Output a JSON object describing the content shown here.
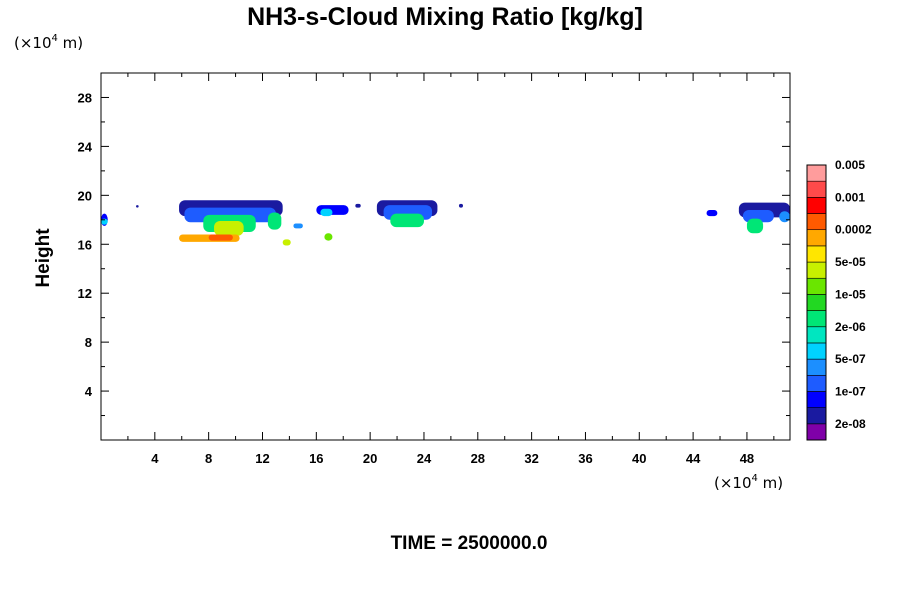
{
  "chart_data": {
    "type": "heatmap",
    "title": "NH3-s-Cloud Mixing Ratio [kg/kg]",
    "ylabel": "Height",
    "xlabel": "",
    "x_unit": {
      "prefix": "(×10",
      "exp": "4",
      "suffix": " m)"
    },
    "y_unit": {
      "prefix": "(×10",
      "exp": "4",
      "suffix": " m)"
    },
    "xlim": [
      0,
      51.2
    ],
    "ylim": [
      0,
      30
    ],
    "x_ticks": [
      4,
      8,
      12,
      16,
      20,
      24,
      28,
      32,
      36,
      40,
      44,
      48
    ],
    "y_ticks": [
      4,
      8,
      12,
      16,
      20,
      24,
      28
    ],
    "footer": "TIME = 2500000.0",
    "colorbar": {
      "colors": [
        "#7f00a8",
        "#1a1aa0",
        "#0000ff",
        "#1e5cff",
        "#1c8fff",
        "#00d2ff",
        "#00e6c0",
        "#00e676",
        "#22d822",
        "#6ae600",
        "#c8f000",
        "#ffe600",
        "#ffa800",
        "#ff5a00",
        "#ff0000",
        "#ff4a4a",
        "#ff9c9c"
      ],
      "labels": [
        "2e-08",
        "1e-07",
        "5e-07",
        "2e-06",
        "1e-05",
        "5e-05",
        "0.0002",
        "0.001",
        "0.005"
      ]
    },
    "cloud_layers": [
      {
        "x": [
          5.8,
          13.5
        ],
        "y": [
          18.3,
          19.6
        ],
        "level": 1
      },
      {
        "x": [
          6.2,
          13.0
        ],
        "y": [
          17.8,
          19.0
        ],
        "level": 3
      },
      {
        "x": [
          7.6,
          11.5
        ],
        "y": [
          17.0,
          18.4
        ],
        "level": 7
      },
      {
        "x": [
          8.4,
          10.6
        ],
        "y": [
          16.7,
          17.9
        ],
        "level": 10
      },
      {
        "x": [
          5.8,
          10.3
        ],
        "y": [
          16.2,
          16.8
        ],
        "level": 12
      },
      {
        "x": [
          8.0,
          9.8
        ],
        "y": [
          16.3,
          16.8
        ],
        "level": 13
      },
      {
        "x": [
          12.4,
          13.4
        ],
        "y": [
          17.2,
          18.6
        ],
        "level": 7
      },
      {
        "x": [
          13.5,
          14.1
        ],
        "y": [
          15.9,
          16.4
        ],
        "level": 10
      },
      {
        "x": [
          14.3,
          15.0
        ],
        "y": [
          17.3,
          17.7
        ],
        "level": 4
      },
      {
        "x": [
          16.0,
          18.4
        ],
        "y": [
          18.4,
          19.2
        ],
        "level": 2
      },
      {
        "x": [
          16.3,
          17.2
        ],
        "y": [
          18.3,
          18.9
        ],
        "level": 5
      },
      {
        "x": [
          16.6,
          17.2
        ],
        "y": [
          16.3,
          16.9
        ],
        "level": 9
      },
      {
        "x": [
          18.9,
          19.3
        ],
        "y": [
          19.0,
          19.3
        ],
        "level": 1
      },
      {
        "x": [
          20.5,
          25.0
        ],
        "y": [
          18.3,
          19.6
        ],
        "level": 1
      },
      {
        "x": [
          21.0,
          24.6
        ],
        "y": [
          18.0,
          19.2
        ],
        "level": 3
      },
      {
        "x": [
          21.5,
          24.0
        ],
        "y": [
          17.4,
          18.5
        ],
        "level": 7
      },
      {
        "x": [
          26.6,
          26.9
        ],
        "y": [
          19.0,
          19.3
        ],
        "level": 1
      },
      {
        "x": [
          45.0,
          45.8
        ],
        "y": [
          18.3,
          18.8
        ],
        "level": 2
      },
      {
        "x": [
          47.4,
          51.2
        ],
        "y": [
          18.2,
          19.4
        ],
        "level": 1
      },
      {
        "x": [
          47.7,
          50.0
        ],
        "y": [
          17.8,
          18.8
        ],
        "level": 3
      },
      {
        "x": [
          48.0,
          49.2
        ],
        "y": [
          16.9,
          18.1
        ],
        "level": 7
      },
      {
        "x": [
          50.4,
          51.2
        ],
        "y": [
          17.8,
          18.7
        ],
        "level": 4
      },
      {
        "x": [
          0.0,
          0.5
        ],
        "y": [
          17.5,
          18.5
        ],
        "level": 2
      },
      {
        "x": [
          0.0,
          0.5
        ],
        "y": [
          17.6,
          18.1
        ],
        "level": 5
      },
      {
        "x": [
          2.6,
          2.8
        ],
        "y": [
          19.0,
          19.2
        ],
        "level": 1
      }
    ]
  }
}
